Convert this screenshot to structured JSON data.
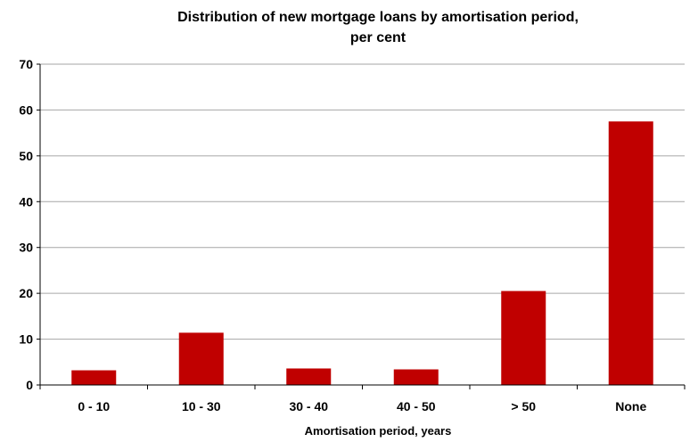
{
  "chart_data": {
    "type": "bar",
    "title_lines": [
      "Distribution of new mortgage loans by amortisation period,",
      "per cent"
    ],
    "xlabel": "Amortisation period, years",
    "ylabel": "",
    "categories": [
      "0 - 10",
      "10 - 30",
      "30 - 40",
      "40 - 50",
      "> 50",
      "None"
    ],
    "values": [
      3.2,
      11.4,
      3.6,
      3.4,
      20.5,
      57.5
    ],
    "ylim": [
      0,
      70
    ],
    "yticks": [
      0,
      10,
      20,
      30,
      40,
      50,
      60,
      70
    ],
    "grid": true,
    "bar_color": "#c00000",
    "grid_color": "#a6a6a6",
    "axis_color": "#000000"
  }
}
